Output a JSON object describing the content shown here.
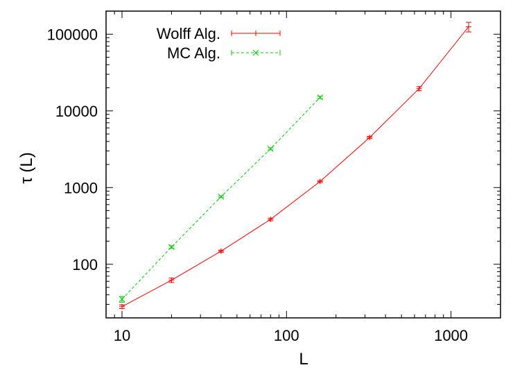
{
  "chart_data": {
    "type": "line",
    "xlabel": "L",
    "ylabel": "τ (L)",
    "xscale": "log",
    "yscale": "log",
    "xlim": [
      8,
      2000
    ],
    "ylim": [
      20,
      200000
    ],
    "x_ticks": [
      {
        "value": 10,
        "label": "10"
      },
      {
        "value": 100,
        "label": "100"
      },
      {
        "value": 1000,
        "label": "1000"
      }
    ],
    "y_ticks": [
      {
        "value": 100,
        "label": "100"
      },
      {
        "value": 1000,
        "label": "1000"
      },
      {
        "value": 10000,
        "label": "10000"
      },
      {
        "value": 100000,
        "label": "100000"
      }
    ],
    "grid": false,
    "legend_position": "top-left",
    "series": [
      {
        "name": "Wolff Alg.",
        "color": "#ff0000",
        "marker": "plus",
        "line_style": "solid",
        "error_bars": true,
        "points": [
          {
            "x": 10,
            "y": 28,
            "err": 1.5
          },
          {
            "x": 20,
            "y": 62,
            "err": 4
          },
          {
            "x": 40,
            "y": 148,
            "err": 5
          },
          {
            "x": 80,
            "y": 385,
            "err": 15
          },
          {
            "x": 160,
            "y": 1200,
            "err": 40
          },
          {
            "x": 320,
            "y": 4500,
            "err": 150
          },
          {
            "x": 640,
            "y": 19500,
            "err": 1200
          },
          {
            "x": 1280,
            "y": 125000,
            "err": 18000
          }
        ]
      },
      {
        "name": "MC Alg.",
        "color": "#00cc00",
        "marker": "cross",
        "line_style": "dashed",
        "error_bars": true,
        "points": [
          {
            "x": 10,
            "y": 35,
            "err": 3
          },
          {
            "x": 20,
            "y": 168,
            "err": 6
          },
          {
            "x": 40,
            "y": 760,
            "err": 20
          },
          {
            "x": 80,
            "y": 3200,
            "err": 100
          },
          {
            "x": 160,
            "y": 15000,
            "err": 500
          }
        ]
      }
    ]
  }
}
